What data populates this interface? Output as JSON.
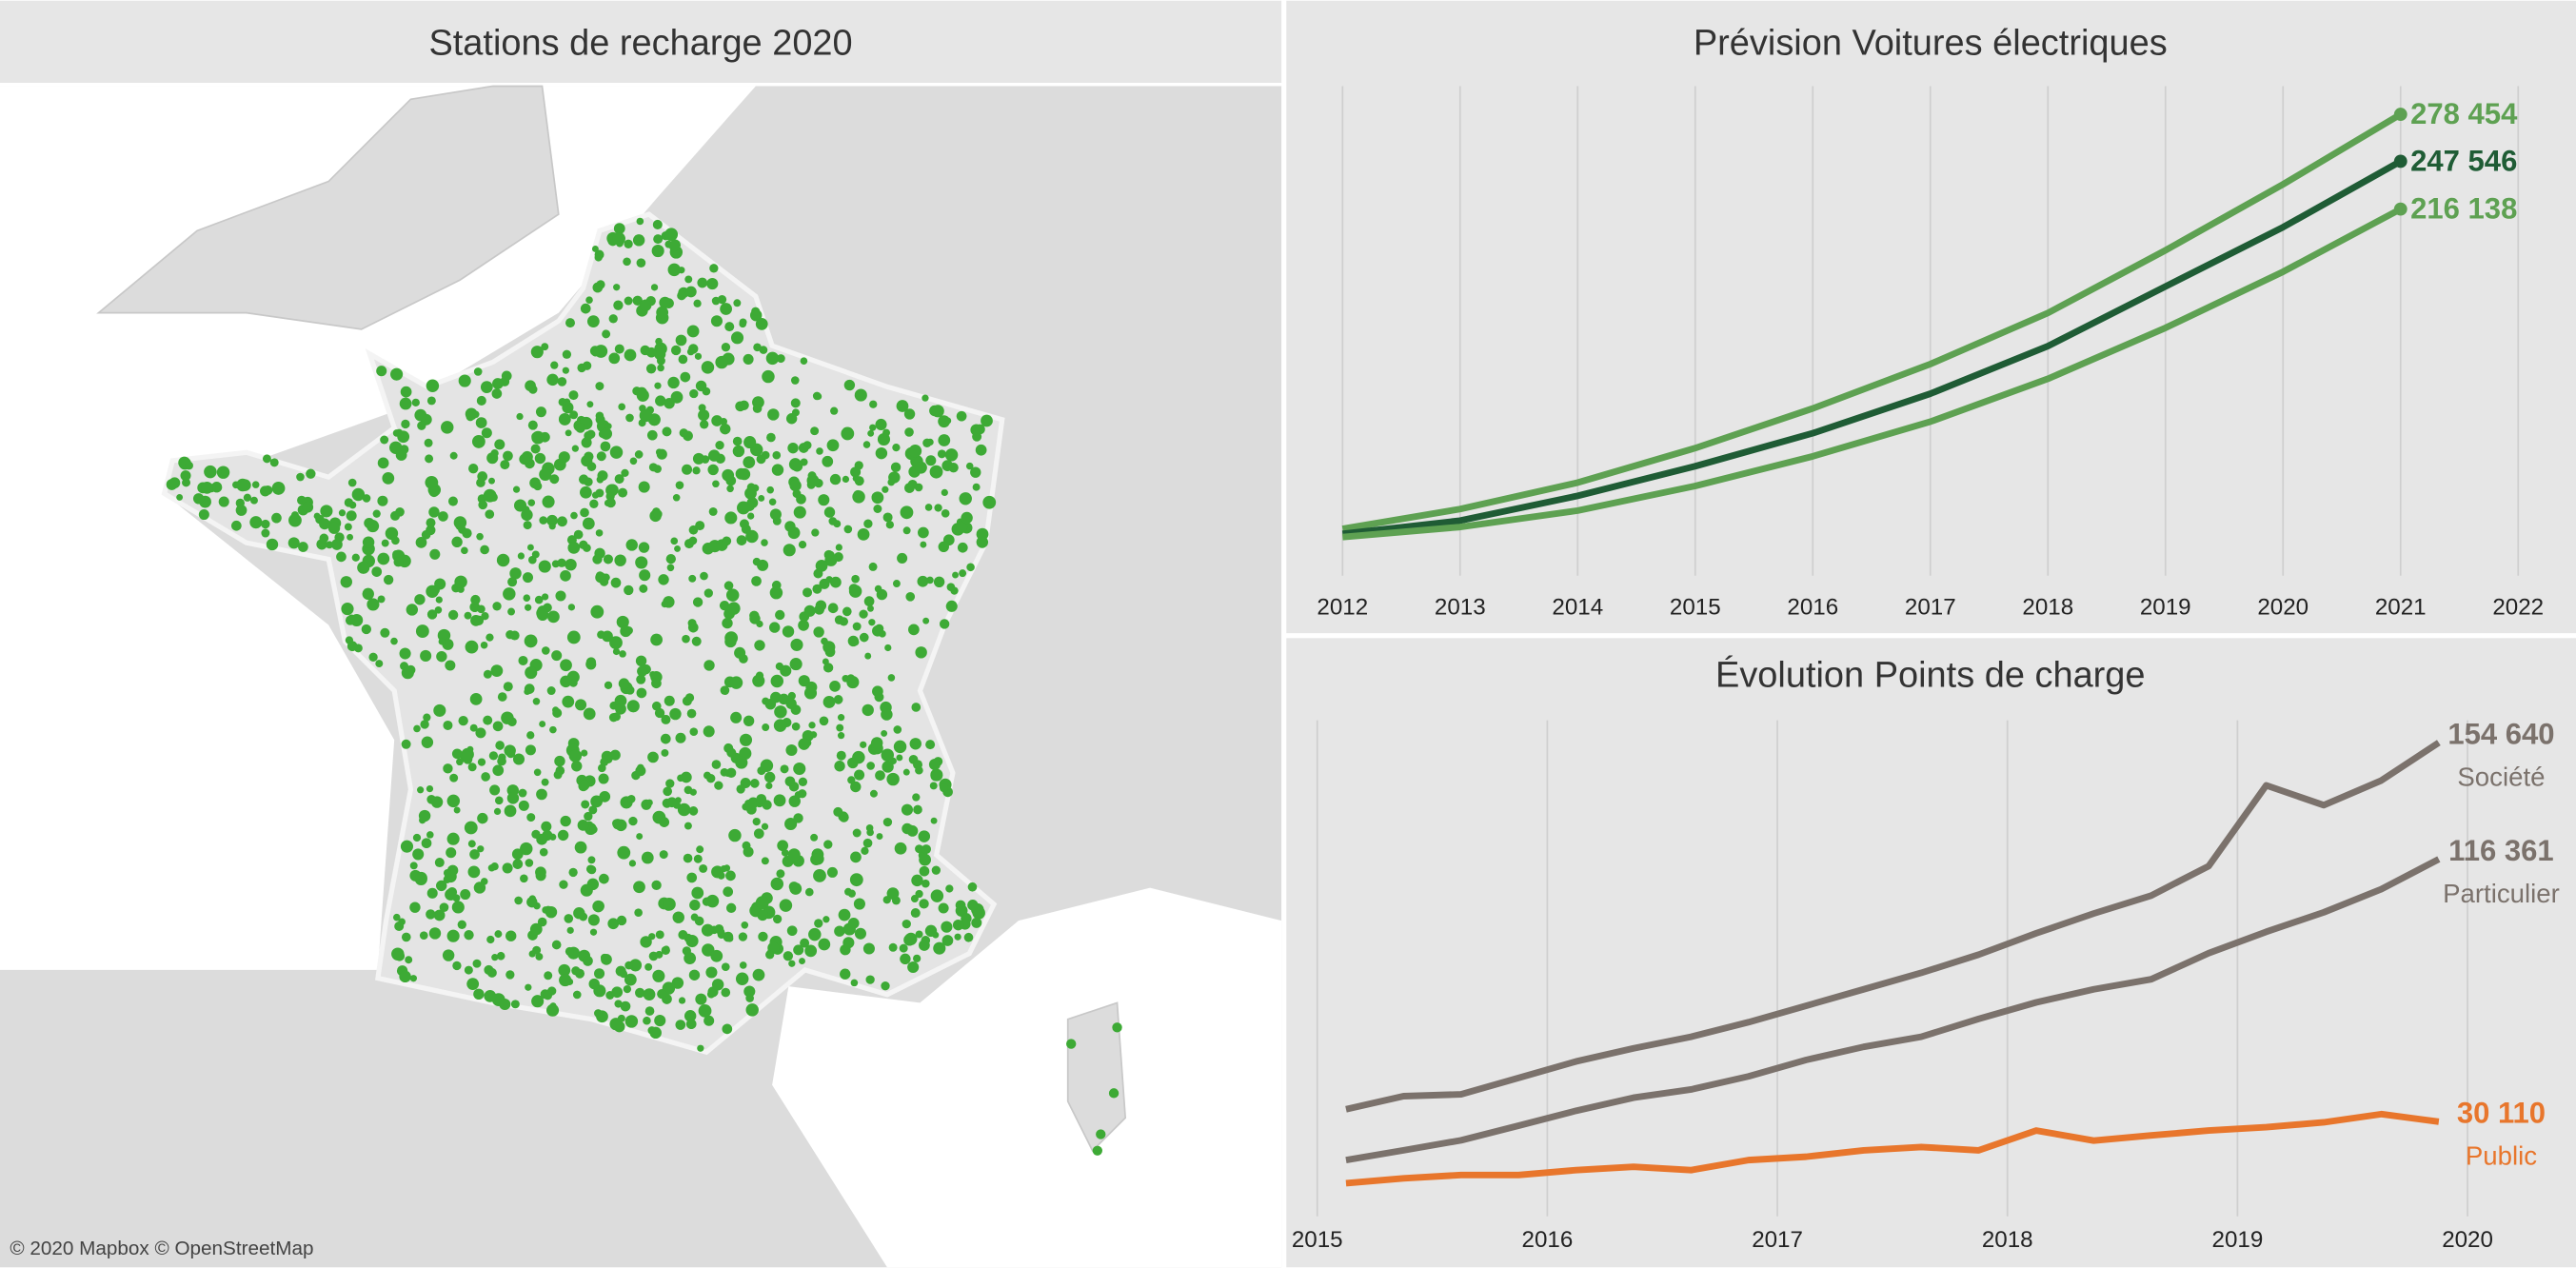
{
  "map": {
    "title": "Stations de recharge 2020",
    "attribution": "© 2020 Mapbox © OpenStreetMap"
  },
  "chart_data": [
    {
      "type": "line",
      "title": "Prévision Voitures électriques",
      "x": [
        2012,
        2013,
        2014,
        2015,
        2016,
        2017,
        2018,
        2019,
        2020,
        2021
      ],
      "xlim": [
        2011.55,
        2022.45
      ],
      "xticks": [
        2012,
        2013,
        2014,
        2015,
        2016,
        2017,
        2018,
        2019,
        2020,
        2021,
        2022
      ],
      "ylim": [
        -25000,
        297000
      ],
      "grid": true,
      "series": [
        {
          "color": "#5ea152",
          "values": [
            5800,
            18800,
            36200,
            58900,
            85000,
            114200,
            147800,
            189000,
            232400,
            278454
          ],
          "value_labels": [
            null,
            null,
            null,
            null,
            null,
            null,
            null,
            null,
            null,
            "278 454"
          ]
        },
        {
          "color": "#1f5c35",
          "values": [
            2500,
            11200,
            27500,
            47000,
            68700,
            94700,
            126000,
            165200,
            204200,
            247546
          ],
          "value_labels": [
            null,
            null,
            null,
            null,
            null,
            null,
            null,
            null,
            null,
            "247 546"
          ]
        },
        {
          "color": "#5ea152",
          "values": [
            400,
            7000,
            17800,
            34000,
            53500,
            76300,
            104500,
            138000,
            174900,
            216138
          ],
          "value_labels": [
            null,
            null,
            null,
            null,
            null,
            null,
            null,
            null,
            null,
            "216 138"
          ]
        }
      ]
    },
    {
      "type": "line",
      "title": "Évolution Points de charge",
      "x": [
        2015.125,
        2015.375,
        2015.625,
        2015.875,
        2016.125,
        2016.375,
        2016.625,
        2016.875,
        2017.125,
        2017.375,
        2017.625,
        2017.875,
        2018.125,
        2018.375,
        2018.625,
        2018.875,
        2019.125,
        2019.375,
        2019.625,
        2019.875
      ],
      "xlim": [
        2014.88,
        2020.45
      ],
      "xticks": [
        2015,
        2016,
        2017,
        2018,
        2019,
        2020
      ],
      "ylim": [
        -1000,
        162000
      ],
      "grid": true,
      "series": [
        {
          "name": "Société",
          "color": "#7b726c",
          "values": [
            34200,
            38500,
            39100,
            44500,
            49900,
            54200,
            58000,
            62800,
            68200,
            73600,
            79000,
            85000,
            92000,
            98500,
            104400,
            114100,
            140600,
            134100,
            142200,
            154640
          ],
          "value_labels": [
            null,
            null,
            null,
            null,
            null,
            null,
            null,
            null,
            null,
            null,
            null,
            null,
            null,
            null,
            null,
            null,
            null,
            null,
            null,
            "154 640"
          ]
        },
        {
          "name": "Particulier",
          "color": "#7b726c",
          "values": [
            17500,
            20700,
            24000,
            28800,
            33700,
            38000,
            40700,
            45000,
            50400,
            54700,
            58000,
            63900,
            69300,
            73600,
            76900,
            85500,
            92500,
            98900,
            106500,
            116361
          ],
          "value_labels": [
            null,
            null,
            null,
            null,
            null,
            null,
            null,
            null,
            null,
            null,
            null,
            null,
            null,
            null,
            null,
            null,
            null,
            null,
            null,
            "116 361"
          ]
        },
        {
          "name": "Public",
          "color": "#e8762c",
          "values": [
            9900,
            11500,
            12600,
            12600,
            14200,
            15300,
            14200,
            17500,
            18600,
            20700,
            21800,
            20700,
            27200,
            23900,
            25600,
            27200,
            28300,
            29900,
            32600,
            30110
          ],
          "value_labels": [
            null,
            null,
            null,
            null,
            null,
            null,
            null,
            null,
            null,
            null,
            null,
            null,
            null,
            null,
            null,
            null,
            null,
            null,
            null,
            "30 110"
          ]
        }
      ]
    }
  ]
}
